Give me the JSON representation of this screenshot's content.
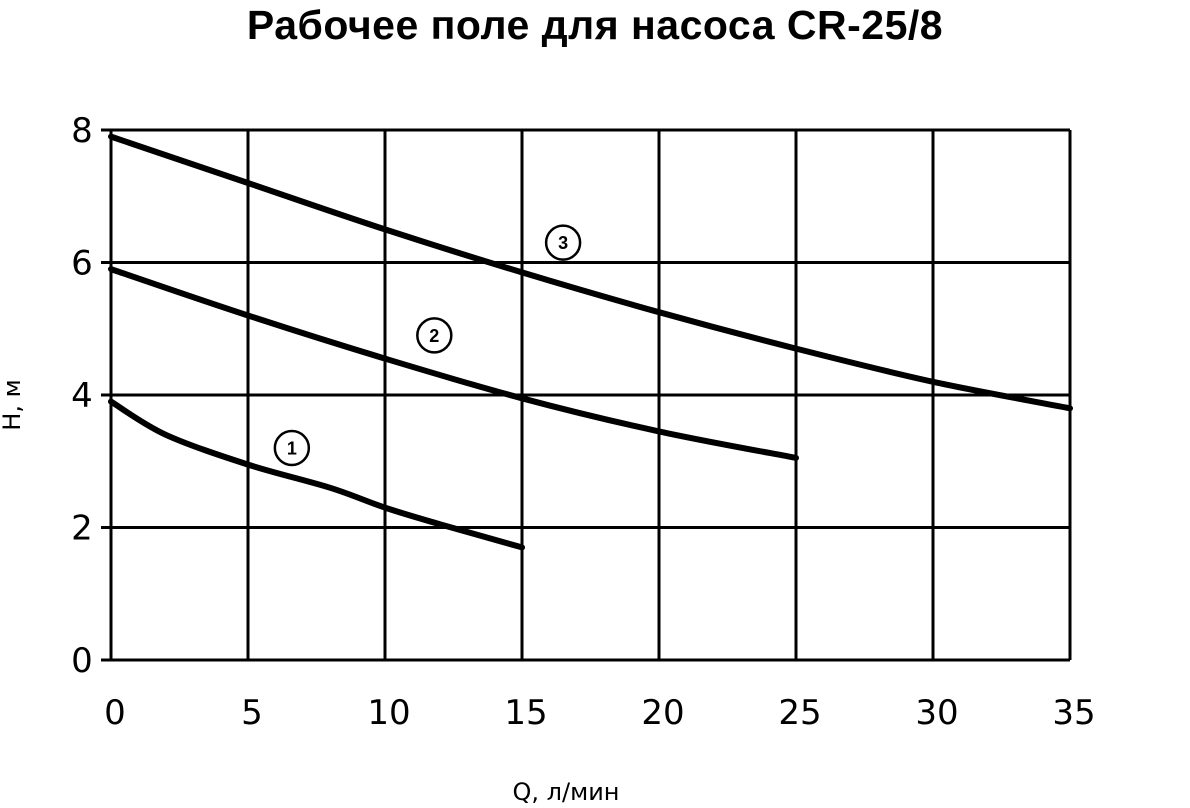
{
  "chart_data": {
    "type": "line",
    "title": "Рабочее поле для насоса CR-25/8",
    "xlabel": "Q, л/мин",
    "ylabel": "H, м",
    "xlim": [
      0,
      35
    ],
    "ylim": [
      0,
      8
    ],
    "x_ticks": [
      "0",
      "5",
      "10",
      "15",
      "20",
      "25",
      "30",
      "35"
    ],
    "y_ticks": [
      "0",
      "2",
      "4",
      "6",
      "8"
    ],
    "grid": true,
    "colors": {
      "line": "#000000",
      "grid": "#000000",
      "background": "#ffffff"
    },
    "series": [
      {
        "name": "1",
        "points": [
          [
            0,
            3.9
          ],
          [
            2,
            3.4
          ],
          [
            5,
            2.95
          ],
          [
            8,
            2.6
          ],
          [
            10,
            2.3
          ],
          [
            12,
            2.05
          ],
          [
            15,
            1.7
          ]
        ],
        "label_at": [
          6.6,
          3.2
        ]
      },
      {
        "name": "2",
        "points": [
          [
            0,
            5.9
          ],
          [
            5,
            5.2
          ],
          [
            10,
            4.55
          ],
          [
            15,
            3.95
          ],
          [
            20,
            3.45
          ],
          [
            25,
            3.05
          ]
        ],
        "label_at": [
          11.8,
          4.9
        ]
      },
      {
        "name": "3",
        "points": [
          [
            0,
            7.9
          ],
          [
            5,
            7.2
          ],
          [
            10,
            6.5
          ],
          [
            15,
            5.85
          ],
          [
            20,
            5.25
          ],
          [
            25,
            4.7
          ],
          [
            30,
            4.2
          ],
          [
            35,
            3.8
          ]
        ],
        "label_at": [
          16.5,
          6.3
        ]
      }
    ]
  }
}
